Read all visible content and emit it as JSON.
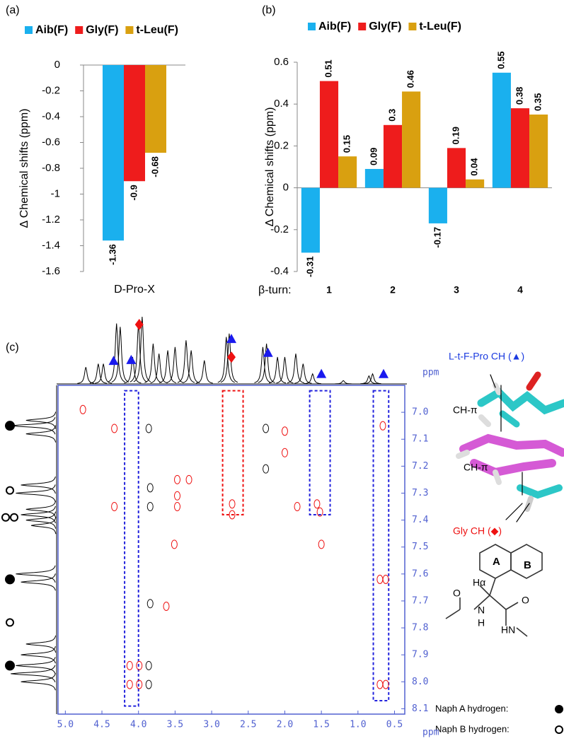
{
  "chart_data": [
    {
      "type": "bar",
      "panel_label": "(a)",
      "y_label": "Δ Chemical shifts (ppm)",
      "categories": [
        "D-Pro-X"
      ],
      "series": [
        {
          "name": "Aib(F)",
          "color": "#1ab0ee",
          "values": [
            -1.36
          ]
        },
        {
          "name": "Gly(F)",
          "color": "#ee1c1c",
          "values": [
            -0.9
          ]
        },
        {
          "name": "t-Leu(F)",
          "color": "#d9a010",
          "values": [
            -0.68
          ]
        }
      ],
      "ylim": [
        -1.6,
        0
      ],
      "yticks": [
        0,
        -0.2,
        -0.4,
        -0.6,
        -0.8,
        -1,
        -1.2,
        -1.4,
        -1.6
      ],
      "legend": "top"
    },
    {
      "type": "bar",
      "panel_label": "(b)",
      "y_label": "Δ Chemical shifts (ppm)",
      "x_label": "β-turn:",
      "categories": [
        "1",
        "2",
        "3",
        "4"
      ],
      "series": [
        {
          "name": "Aib(F)",
          "color": "#1ab0ee",
          "values": [
            -0.31,
            0.09,
            -0.17,
            0.55
          ]
        },
        {
          "name": "Gly(F)",
          "color": "#ee1c1c",
          "values": [
            0.51,
            0.3,
            0.19,
            0.38
          ]
        },
        {
          "name": "t-Leu(F)",
          "color": "#d9a010",
          "values": [
            0.15,
            0.46,
            0.04,
            0.35
          ]
        }
      ],
      "ylim": [
        -0.4,
        0.6
      ],
      "yticks": [
        0.6,
        0.4,
        0.2,
        0,
        -0.2,
        -0.4
      ],
      "legend": "top"
    },
    {
      "type": "nmr",
      "panel_label": "(c)",
      "x_unit": "ppm",
      "y_unit": "ppm",
      "xlim": [
        5.1,
        0.36
      ],
      "ylim": [
        6.9,
        8.12
      ],
      "xticks": [
        {
          "value": 5,
          "label": "5.0"
        },
        4.5,
        {
          "value": 4,
          "label": "4.0"
        },
        3.5,
        {
          "value": 3,
          "label": "3.0"
        },
        2.5,
        {
          "value": 2,
          "label": "2.0"
        },
        1.5,
        {
          "value": 1,
          "label": "1.0"
        },
        0.5
      ],
      "yticks": [
        {
          "value": 7,
          "label": "7.0"
        },
        7.1,
        7.2,
        7.3,
        7.4,
        7.5,
        7.6,
        7.7,
        7.8,
        7.9,
        {
          "value": 8,
          "label": "8.0"
        },
        8.1
      ],
      "trace_top": [
        {
          "x": 4.72,
          "h": 0.25
        },
        {
          "x": 4.55,
          "h": 0.3
        },
        {
          "x": 4.48,
          "h": 0.3
        },
        {
          "x": 4.3,
          "h": 0.9
        },
        {
          "x": 4.25,
          "h": 0.85
        },
        {
          "x": 4.08,
          "h": 0.4
        },
        {
          "x": 4.0,
          "h": 0.9
        },
        {
          "x": 3.95,
          "h": 1.0
        },
        {
          "x": 3.8,
          "h": 0.6
        },
        {
          "x": 3.72,
          "h": 0.45
        },
        {
          "x": 3.6,
          "h": 0.5
        },
        {
          "x": 3.5,
          "h": 0.55
        },
        {
          "x": 3.35,
          "h": 0.65
        },
        {
          "x": 3.28,
          "h": 0.5
        },
        {
          "x": 3.1,
          "h": 0.35
        },
        {
          "x": 2.8,
          "h": 0.7
        },
        {
          "x": 2.76,
          "h": 0.75
        },
        {
          "x": 2.3,
          "h": 0.55
        },
        {
          "x": 2.25,
          "h": 0.6
        },
        {
          "x": 2.1,
          "h": 0.4
        },
        {
          "x": 2.0,
          "h": 0.4
        },
        {
          "x": 1.85,
          "h": 0.45
        },
        {
          "x": 1.75,
          "h": 0.3
        },
        {
          "x": 1.62,
          "h": 0.15
        },
        {
          "x": 1.2,
          "h": 0.05
        },
        {
          "x": 0.85,
          "h": 0.12
        },
        {
          "x": 0.8,
          "h": 0.15
        }
      ],
      "trace_left": [
        {
          "y": 7.03,
          "h": 0.6
        },
        {
          "y": 7.05,
          "h": 0.9
        },
        {
          "y": 7.08,
          "h": 0.6
        },
        {
          "y": 7.27,
          "h": 0.7
        },
        {
          "y": 7.3,
          "h": 0.8
        },
        {
          "y": 7.36,
          "h": 0.6
        },
        {
          "y": 7.38,
          "h": 0.7
        },
        {
          "y": 7.4,
          "h": 0.6
        },
        {
          "y": 7.42,
          "h": 0.5
        },
        {
          "y": 7.6,
          "h": 0.8
        },
        {
          "y": 7.63,
          "h": 0.7
        },
        {
          "y": 7.86,
          "h": 0.6
        },
        {
          "y": 7.9,
          "h": 0.7
        },
        {
          "y": 7.94,
          "h": 0.8
        },
        {
          "y": 7.97,
          "h": 0.9
        },
        {
          "y": 8.0,
          "h": 0.7
        }
      ],
      "markers": [
        {
          "x": 4.34,
          "shape": "triangle",
          "color": "#1a1aee"
        },
        {
          "x": 4.1,
          "shape": "triangle",
          "color": "#1a1aee"
        },
        {
          "x": 3.99,
          "shape": "diamond",
          "color": "#ee1111"
        },
        {
          "x": 2.73,
          "shape": "triangle",
          "color": "#1a1aee"
        },
        {
          "x": 2.73,
          "shape": "diamond",
          "color": "#ee1111"
        },
        {
          "x": 2.23,
          "shape": "triangle",
          "color": "#1a1aee"
        },
        {
          "x": 1.5,
          "shape": "triangle",
          "color": "#1a1aee"
        },
        {
          "x": 0.65,
          "shape": "triangle",
          "color": "#1a1aee"
        }
      ],
      "row_markers": [
        {
          "y": 7.05,
          "filled": true,
          "count": 1
        },
        {
          "y": 7.29,
          "filled": false,
          "count": 1
        },
        {
          "y": 7.39,
          "filled": false,
          "count": 2
        },
        {
          "y": 7.62,
          "filled": true,
          "count": 1
        },
        {
          "y": 7.78,
          "filled": false,
          "count": 1
        },
        {
          "y": 7.94,
          "filled": true,
          "count": 1
        }
      ],
      "highlights": [
        {
          "x": [
            4.19,
            4.0
          ],
          "y": [
            6.92,
            8.09
          ],
          "color": "#2222dd"
        },
        {
          "x": [
            2.85,
            2.57
          ],
          "y": [
            6.92,
            7.38
          ],
          "color": "#ee1111"
        },
        {
          "x": [
            1.66,
            1.38
          ],
          "y": [
            6.92,
            7.38
          ],
          "color": "#2222dd"
        },
        {
          "x": [
            0.79,
            0.58
          ],
          "y": [
            6.92,
            8.07
          ],
          "color": "#2222dd"
        }
      ],
      "peaks": [
        {
          "x": 4.76,
          "y": 6.99,
          "color": "#ee1111"
        },
        {
          "x": 4.33,
          "y": 7.06,
          "color": "#ee1111"
        },
        {
          "x": 4.33,
          "y": 7.35,
          "color": "#ee1111"
        },
        {
          "x": 4.12,
          "y": 7.94,
          "color": "#ee1111"
        },
        {
          "x": 3.99,
          "y": 7.94,
          "color": "#ee1111"
        },
        {
          "x": 4.12,
          "y": 8.01,
          "color": "#ee1111"
        },
        {
          "x": 3.99,
          "y": 8.01,
          "color": "#ee1111"
        },
        {
          "x": 3.86,
          "y": 7.94,
          "color": "#111111"
        },
        {
          "x": 3.86,
          "y": 8.01,
          "color": "#111111"
        },
        {
          "x": 3.86,
          "y": 7.06,
          "color": "#111111"
        },
        {
          "x": 3.84,
          "y": 7.28,
          "color": "#111111"
        },
        {
          "x": 3.84,
          "y": 7.35,
          "color": "#111111"
        },
        {
          "x": 3.84,
          "y": 7.71,
          "color": "#111111"
        },
        {
          "x": 3.62,
          "y": 7.72,
          "color": "#ee1111"
        },
        {
          "x": 3.51,
          "y": 7.49,
          "color": "#ee1111"
        },
        {
          "x": 3.47,
          "y": 7.25,
          "color": "#ee1111"
        },
        {
          "x": 3.47,
          "y": 7.31,
          "color": "#ee1111"
        },
        {
          "x": 3.31,
          "y": 7.25,
          "color": "#ee1111"
        },
        {
          "x": 3.47,
          "y": 7.35,
          "color": "#ee1111"
        },
        {
          "x": 2.72,
          "y": 7.34,
          "color": "#ee1111"
        },
        {
          "x": 2.72,
          "y": 7.38,
          "color": "#ee1111"
        },
        {
          "x": 2.26,
          "y": 7.06,
          "color": "#111111"
        },
        {
          "x": 2.26,
          "y": 7.21,
          "color": "#111111"
        },
        {
          "x": 2.0,
          "y": 7.07,
          "color": "#ee1111"
        },
        {
          "x": 2.0,
          "y": 7.15,
          "color": "#ee1111"
        },
        {
          "x": 1.83,
          "y": 7.35,
          "color": "#ee1111"
        },
        {
          "x": 1.56,
          "y": 7.34,
          "color": "#ee1111"
        },
        {
          "x": 1.52,
          "y": 7.37,
          "color": "#ee1111"
        },
        {
          "x": 1.5,
          "y": 7.49,
          "color": "#ee1111"
        },
        {
          "x": 0.66,
          "y": 7.05,
          "color": "#ee1111"
        },
        {
          "x": 0.7,
          "y": 7.62,
          "color": "#ee1111"
        },
        {
          "x": 0.62,
          "y": 7.62,
          "color": "#ee1111"
        },
        {
          "x": 0.7,
          "y": 8.01,
          "color": "#ee1111"
        },
        {
          "x": 0.62,
          "y": 8.01,
          "color": "#ee1111"
        }
      ]
    }
  ],
  "structure": {
    "pro_label": "L-t-F-Pro CH (▲)",
    "ch_pi_1": "CH-π",
    "ch_pi_2": "CH-π",
    "gly_label": "Gly CH (◆)",
    "ring_a": "A",
    "ring_b": "B",
    "h_alpha": "Hα",
    "o_left": "O",
    "o_right": "O",
    "n_left": "N",
    "h_left": "H",
    "hn_right": "HN",
    "naph_a": "Naph A hydrogen:",
    "naph_b": "Naph B hydrogen:"
  }
}
